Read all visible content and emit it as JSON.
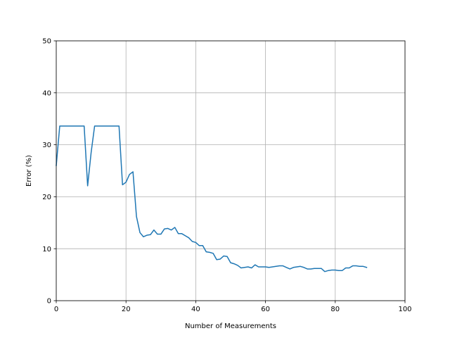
{
  "chart_data": {
    "type": "line",
    "title": "",
    "xlabel": "Number of Measurements",
    "ylabel": "Error (%)",
    "xlim": [
      0,
      100
    ],
    "ylim": [
      0,
      50
    ],
    "xticks": [
      0,
      20,
      40,
      60,
      80,
      100
    ],
    "yticks": [
      0,
      10,
      20,
      30,
      40,
      50
    ],
    "grid": true,
    "series": [
      {
        "color": "#1f77b4",
        "x": [
          0,
          1,
          2,
          3,
          4,
          5,
          6,
          7,
          8,
          9,
          10,
          11,
          12,
          13,
          14,
          15,
          16,
          17,
          18,
          19,
          20,
          21,
          22,
          23,
          24,
          25,
          26,
          27,
          28,
          29,
          30,
          31,
          32,
          33,
          34,
          35,
          36,
          37,
          38,
          39,
          40,
          41,
          42,
          43,
          44,
          45,
          46,
          47,
          48,
          49,
          50,
          51,
          52,
          53,
          54,
          55,
          56,
          57,
          58,
          59,
          60,
          61,
          62,
          63,
          64,
          65,
          66,
          67,
          68,
          69,
          70,
          71,
          72,
          73,
          74,
          75,
          76,
          77,
          78,
          79,
          80,
          81,
          82,
          83,
          84,
          85,
          86,
          87,
          88,
          89
        ],
        "y": [
          26,
          33.6,
          33.6,
          33.6,
          33.6,
          33.6,
          33.6,
          33.6,
          33.6,
          22.1,
          28.5,
          33.6,
          33.6,
          33.6,
          33.6,
          33.6,
          33.6,
          33.6,
          33.6,
          22.3,
          22.8,
          24.3,
          24.8,
          16.2,
          13.1,
          12.3,
          12.6,
          12.7,
          13.6,
          12.8,
          12.8,
          13.8,
          13.9,
          13.6,
          14.1,
          12.9,
          12.9,
          12.5,
          12.1,
          11.4,
          11.2,
          10.6,
          10.6,
          9.4,
          9.3,
          9.1,
          7.9,
          8.0,
          8.6,
          8.5,
          7.3,
          7.1,
          6.8,
          6.3,
          6.4,
          6.5,
          6.3,
          6.9,
          6.5,
          6.5,
          6.5,
          6.4,
          6.5,
          6.6,
          6.7,
          6.7,
          6.4,
          6.1,
          6.4,
          6.5,
          6.6,
          6.4,
          6.1,
          6.1,
          6.2,
          6.2,
          6.2,
          5.6,
          5.8,
          5.9,
          5.9,
          5.8,
          5.8,
          6.3,
          6.3,
          6.7,
          6.7,
          6.6,
          6.6,
          6.4
        ]
      }
    ]
  }
}
